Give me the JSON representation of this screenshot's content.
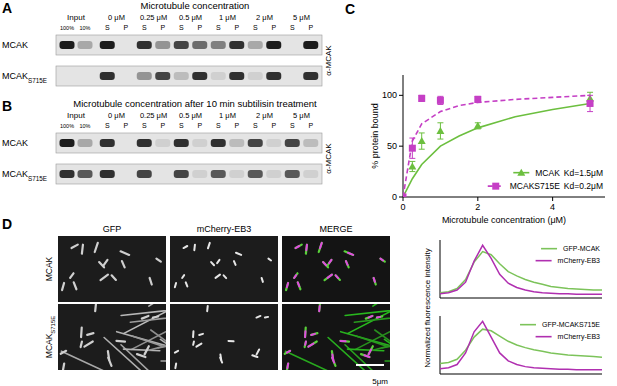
{
  "panel_labels": [
    "A",
    "B",
    "C",
    "D"
  ],
  "blots": [
    {
      "title": "Microtubule concentration",
      "input_label": "Input",
      "input_lanes": [
        "100%",
        "10%"
      ],
      "concentrations": [
        "0 μM",
        "0.25 μM",
        "0.5 μM",
        "1 μM",
        "2 μM",
        "5 μM"
      ],
      "fractions": [
        "S",
        "P"
      ],
      "antibody": "α-MCAK",
      "rows": [
        {
          "label": "MCAK",
          "bands": [
            1.0,
            0.3,
            1.0,
            0.0,
            0.9,
            0.4,
            0.8,
            0.6,
            0.5,
            0.9,
            0.3,
            1.0,
            0.0,
            1.0
          ]
        },
        {
          "label": "MCAK",
          "sub": "S715E",
          "bands": [
            0.0,
            0.0,
            0.9,
            0.0,
            0.4,
            0.8,
            0.2,
            0.9,
            0.1,
            0.9,
            0.1,
            0.9,
            0.0,
            0.9
          ]
        }
      ]
    },
    {
      "title": "Microtubule concentration after 10 min subtilisin treatment",
      "input_label": "Input",
      "input_lanes": [
        "100%",
        "10%"
      ],
      "concentrations": [
        "0 μM",
        "0.25 μM",
        "0.5 μM",
        "1 μM",
        "2 μM",
        "5 μM"
      ],
      "fractions": [
        "S",
        "P"
      ],
      "antibody": "α-MCAK",
      "rows": [
        {
          "label": "MCAK",
          "bands": [
            1.0,
            0.3,
            0.9,
            0.0,
            0.9,
            0.1,
            0.9,
            0.1,
            0.9,
            0.2,
            0.8,
            0.1,
            0.8,
            0.2
          ]
        },
        {
          "label": "MCAK",
          "sub": "S715E",
          "bands": [
            0.9,
            0.7,
            0.9,
            0.0,
            0.8,
            0.0,
            0.8,
            0.1,
            0.7,
            0.1,
            0.7,
            0.1,
            0.7,
            0.1
          ]
        }
      ]
    }
  ],
  "chart_data": [
    {
      "type": "scatter",
      "xlabel": "Microtubule concentration (μM)",
      "ylabel": "% protein bound",
      "xlim": [
        0,
        5.4
      ],
      "ylim": [
        0,
        120
      ],
      "xticks": [
        0,
        2,
        4
      ],
      "yticks": [
        0,
        50,
        100
      ],
      "grid": false,
      "legend": "lower-right",
      "x": [
        0,
        0.25,
        0.5,
        1,
        2,
        5
      ],
      "series": [
        {
          "name": "MCAK",
          "kd_label": "Kd=1.5μM",
          "color": "#6cbf3f",
          "marker": "triangle",
          "line_style": "solid",
          "values": [
            0,
            30,
            55,
            65,
            70,
            97
          ],
          "errors": [
            0,
            5,
            8,
            8,
            3,
            6
          ],
          "fit": {
            "x": [
              0,
              0.25,
              0.5,
              1,
              1.5,
              2,
              3,
              4,
              5
            ],
            "values": [
              0,
              18,
              32,
              50,
              60,
              68,
              79,
              86,
              92
            ]
          }
        },
        {
          "name": "MCAKS715E",
          "kd_label": "Kd=0.2μM",
          "color": "#c53fc5",
          "marker": "square",
          "line_style": "dashed",
          "values": [
            0,
            48,
            97,
            95,
            96,
            92
          ],
          "errors": [
            0,
            10,
            3,
            4,
            3,
            8
          ],
          "fit": {
            "x": [
              0,
              0.25,
              0.5,
              1,
              1.5,
              2,
              3,
              4,
              5
            ],
            "values": [
              0,
              55,
              72,
              84,
              90,
              93,
              96,
              98,
              100
            ]
          }
        }
      ]
    },
    {
      "type": "line",
      "ylabel": "Normalized fluorescence intensity",
      "xlim": [
        0,
        19
      ],
      "ylim": [
        0,
        110
      ],
      "tick_labels": false,
      "legend": "upper-right",
      "x": [
        0,
        1,
        2,
        3,
        4,
        5,
        6,
        7,
        8,
        9,
        10,
        11,
        12,
        13,
        14,
        15,
        16,
        17,
        18,
        19
      ],
      "series": [
        {
          "name": "GFP-MCAK",
          "color": "#7cc35a",
          "values": [
            10,
            12,
            18,
            35,
            68,
            88,
            82,
            65,
            50,
            42,
            35,
            30,
            26,
            22,
            20,
            18,
            17,
            16,
            15,
            15
          ]
        },
        {
          "name": "mCherry-EB3",
          "color": "#b02fb0",
          "values": [
            8,
            10,
            15,
            30,
            70,
            100,
            75,
            45,
            28,
            20,
            15,
            12,
            10,
            9,
            8,
            8,
            7,
            7,
            7,
            7
          ]
        }
      ]
    },
    {
      "type": "line",
      "xlim": [
        0,
        19
      ],
      "ylim": [
        0,
        110
      ],
      "tick_labels": false,
      "legend": "upper-right",
      "x": [
        0,
        1,
        2,
        3,
        4,
        5,
        6,
        7,
        8,
        9,
        10,
        11,
        12,
        13,
        14,
        15,
        16,
        17,
        18,
        19
      ],
      "series": [
        {
          "name": "GFP-MCAKS715E",
          "color": "#7cc35a",
          "values": [
            20,
            22,
            28,
            45,
            70,
            85,
            82,
            72,
            62,
            55,
            50,
            46,
            43,
            40,
            38,
            36,
            35,
            34,
            33,
            32
          ]
        },
        {
          "name": "mCherry-EB3",
          "color": "#b02fb0",
          "values": [
            10,
            12,
            18,
            40,
            80,
            100,
            70,
            40,
            25,
            18,
            14,
            12,
            11,
            10,
            9,
            9,
            8,
            8,
            8,
            8
          ]
        }
      ]
    }
  ],
  "images": {
    "columns": [
      "GFP",
      "mCherry-EB3",
      "MERGE"
    ],
    "rows": [
      {
        "label": "MCAK"
      },
      {
        "label": "MCAK",
        "sub": "S715E"
      }
    ],
    "scale_bar": "5μm"
  }
}
